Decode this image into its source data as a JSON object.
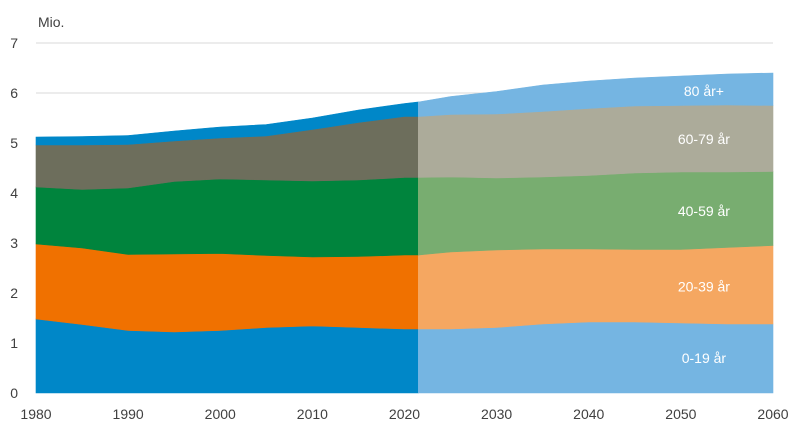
{
  "chart_data": {
    "type": "area",
    "stacked": true,
    "unit_label": "Mio.",
    "ylim": [
      0,
      7
    ],
    "xlim": [
      1980,
      2060
    ],
    "y_ticks": [
      0,
      1,
      2,
      3,
      4,
      5,
      6,
      7
    ],
    "x_ticks": [
      1980,
      1990,
      2000,
      2010,
      2020,
      2030,
      2040,
      2050,
      2060
    ],
    "projection_start": 2021.5,
    "grid": true,
    "x": [
      1980,
      1985,
      1990,
      1995,
      2000,
      2005,
      2010,
      2015,
      2020,
      2021.5,
      2025,
      2030,
      2035,
      2040,
      2045,
      2050,
      2055,
      2060
    ],
    "series": [
      {
        "name": "0-19 år",
        "color_hist": "#0087c8",
        "color_proj": "#75b5e2",
        "values": [
          1.48,
          1.37,
          1.25,
          1.22,
          1.25,
          1.31,
          1.34,
          1.31,
          1.28,
          1.28,
          1.28,
          1.31,
          1.38,
          1.42,
          1.42,
          1.4,
          1.38,
          1.38
        ]
      },
      {
        "name": "20-39 år",
        "color_hist": "#f07100",
        "color_proj": "#f5a761",
        "values": [
          1.5,
          1.53,
          1.52,
          1.56,
          1.54,
          1.44,
          1.38,
          1.42,
          1.48,
          1.48,
          1.54,
          1.55,
          1.5,
          1.46,
          1.45,
          1.47,
          1.53,
          1.57
        ]
      },
      {
        "name": "40-59 år",
        "color_hist": "#00843d",
        "color_proj": "#78ad70",
        "values": [
          1.14,
          1.17,
          1.33,
          1.45,
          1.49,
          1.51,
          1.52,
          1.53,
          1.55,
          1.55,
          1.5,
          1.44,
          1.44,
          1.47,
          1.53,
          1.55,
          1.51,
          1.48
        ]
      },
      {
        "name": "60-79 år",
        "color_hist": "#6d6e5c",
        "color_proj": "#acab9a",
        "values": [
          0.84,
          0.89,
          0.87,
          0.81,
          0.82,
          0.88,
          1.03,
          1.15,
          1.22,
          1.22,
          1.25,
          1.28,
          1.31,
          1.34,
          1.34,
          1.33,
          1.34,
          1.32
        ]
      },
      {
        "name": "80 år+",
        "color_hist": "#0087c8",
        "color_proj": "#75b5e2",
        "values": [
          0.16,
          0.17,
          0.18,
          0.2,
          0.22,
          0.23,
          0.23,
          0.25,
          0.26,
          0.29,
          0.36,
          0.45,
          0.53,
          0.55,
          0.56,
          0.59,
          0.62,
          0.65
        ]
      }
    ]
  }
}
